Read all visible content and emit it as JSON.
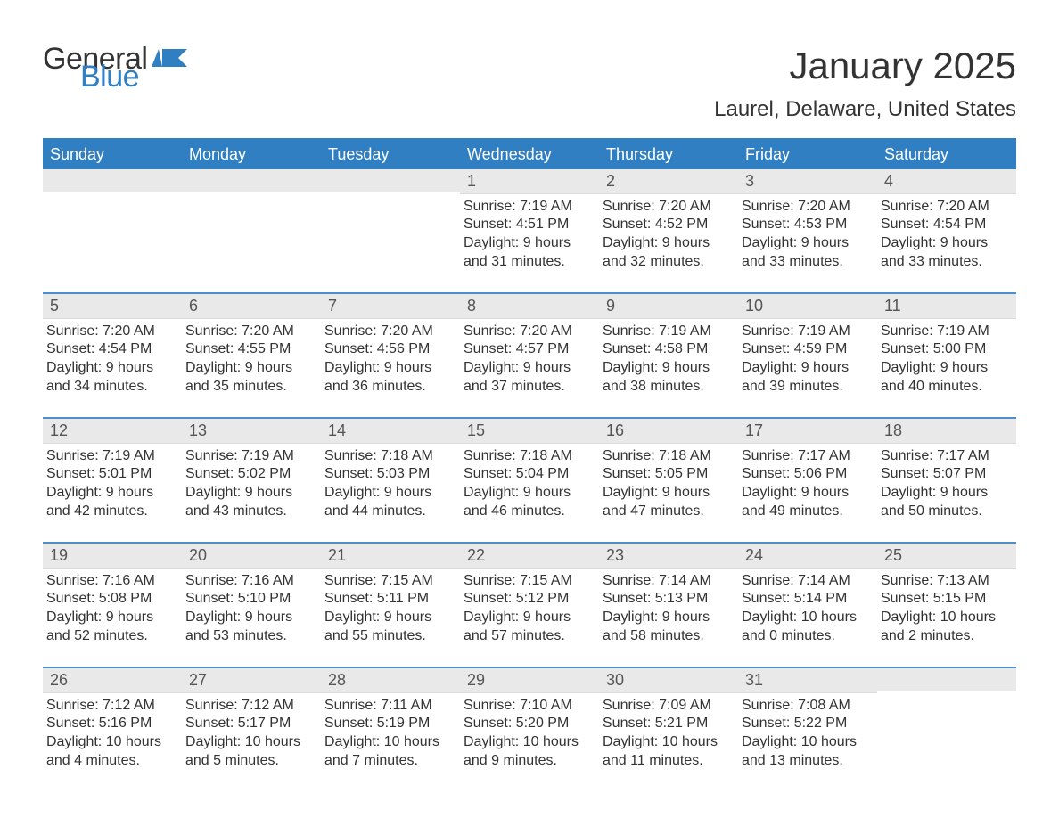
{
  "brand": {
    "part1": "General",
    "part2": "Blue",
    "brand_color": "#2f7fc2",
    "text_color": "#333333"
  },
  "title": "January 2025",
  "subtitle": "Laurel, Delaware, United States",
  "colors": {
    "header_bg": "#2f7fc2",
    "header_text": "#ffffff",
    "week_border": "#4d8fc8",
    "daynum_bg": "#e9e9e9",
    "body_text": "#333333",
    "background": "#ffffff"
  },
  "fontsizes": {
    "title": 42,
    "subtitle": 24,
    "dayhead": 18,
    "daynum": 18,
    "body": 16
  },
  "day_names": [
    "Sunday",
    "Monday",
    "Tuesday",
    "Wednesday",
    "Thursday",
    "Friday",
    "Saturday"
  ],
  "weeks": [
    [
      null,
      null,
      null,
      {
        "n": "1",
        "sunrise": "Sunrise: 7:19 AM",
        "sunset": "Sunset: 4:51 PM",
        "day1": "Daylight: 9 hours",
        "day2": "and 31 minutes."
      },
      {
        "n": "2",
        "sunrise": "Sunrise: 7:20 AM",
        "sunset": "Sunset: 4:52 PM",
        "day1": "Daylight: 9 hours",
        "day2": "and 32 minutes."
      },
      {
        "n": "3",
        "sunrise": "Sunrise: 7:20 AM",
        "sunset": "Sunset: 4:53 PM",
        "day1": "Daylight: 9 hours",
        "day2": "and 33 minutes."
      },
      {
        "n": "4",
        "sunrise": "Sunrise: 7:20 AM",
        "sunset": "Sunset: 4:54 PM",
        "day1": "Daylight: 9 hours",
        "day2": "and 33 minutes."
      }
    ],
    [
      {
        "n": "5",
        "sunrise": "Sunrise: 7:20 AM",
        "sunset": "Sunset: 4:54 PM",
        "day1": "Daylight: 9 hours",
        "day2": "and 34 minutes."
      },
      {
        "n": "6",
        "sunrise": "Sunrise: 7:20 AM",
        "sunset": "Sunset: 4:55 PM",
        "day1": "Daylight: 9 hours",
        "day2": "and 35 minutes."
      },
      {
        "n": "7",
        "sunrise": "Sunrise: 7:20 AM",
        "sunset": "Sunset: 4:56 PM",
        "day1": "Daylight: 9 hours",
        "day2": "and 36 minutes."
      },
      {
        "n": "8",
        "sunrise": "Sunrise: 7:20 AM",
        "sunset": "Sunset: 4:57 PM",
        "day1": "Daylight: 9 hours",
        "day2": "and 37 minutes."
      },
      {
        "n": "9",
        "sunrise": "Sunrise: 7:19 AM",
        "sunset": "Sunset: 4:58 PM",
        "day1": "Daylight: 9 hours",
        "day2": "and 38 minutes."
      },
      {
        "n": "10",
        "sunrise": "Sunrise: 7:19 AM",
        "sunset": "Sunset: 4:59 PM",
        "day1": "Daylight: 9 hours",
        "day2": "and 39 minutes."
      },
      {
        "n": "11",
        "sunrise": "Sunrise: 7:19 AM",
        "sunset": "Sunset: 5:00 PM",
        "day1": "Daylight: 9 hours",
        "day2": "and 40 minutes."
      }
    ],
    [
      {
        "n": "12",
        "sunrise": "Sunrise: 7:19 AM",
        "sunset": "Sunset: 5:01 PM",
        "day1": "Daylight: 9 hours",
        "day2": "and 42 minutes."
      },
      {
        "n": "13",
        "sunrise": "Sunrise: 7:19 AM",
        "sunset": "Sunset: 5:02 PM",
        "day1": "Daylight: 9 hours",
        "day2": "and 43 minutes."
      },
      {
        "n": "14",
        "sunrise": "Sunrise: 7:18 AM",
        "sunset": "Sunset: 5:03 PM",
        "day1": "Daylight: 9 hours",
        "day2": "and 44 minutes."
      },
      {
        "n": "15",
        "sunrise": "Sunrise: 7:18 AM",
        "sunset": "Sunset: 5:04 PM",
        "day1": "Daylight: 9 hours",
        "day2": "and 46 minutes."
      },
      {
        "n": "16",
        "sunrise": "Sunrise: 7:18 AM",
        "sunset": "Sunset: 5:05 PM",
        "day1": "Daylight: 9 hours",
        "day2": "and 47 minutes."
      },
      {
        "n": "17",
        "sunrise": "Sunrise: 7:17 AM",
        "sunset": "Sunset: 5:06 PM",
        "day1": "Daylight: 9 hours",
        "day2": "and 49 minutes."
      },
      {
        "n": "18",
        "sunrise": "Sunrise: 7:17 AM",
        "sunset": "Sunset: 5:07 PM",
        "day1": "Daylight: 9 hours",
        "day2": "and 50 minutes."
      }
    ],
    [
      {
        "n": "19",
        "sunrise": "Sunrise: 7:16 AM",
        "sunset": "Sunset: 5:08 PM",
        "day1": "Daylight: 9 hours",
        "day2": "and 52 minutes."
      },
      {
        "n": "20",
        "sunrise": "Sunrise: 7:16 AM",
        "sunset": "Sunset: 5:10 PM",
        "day1": "Daylight: 9 hours",
        "day2": "and 53 minutes."
      },
      {
        "n": "21",
        "sunrise": "Sunrise: 7:15 AM",
        "sunset": "Sunset: 5:11 PM",
        "day1": "Daylight: 9 hours",
        "day2": "and 55 minutes."
      },
      {
        "n": "22",
        "sunrise": "Sunrise: 7:15 AM",
        "sunset": "Sunset: 5:12 PM",
        "day1": "Daylight: 9 hours",
        "day2": "and 57 minutes."
      },
      {
        "n": "23",
        "sunrise": "Sunrise: 7:14 AM",
        "sunset": "Sunset: 5:13 PM",
        "day1": "Daylight: 9 hours",
        "day2": "and 58 minutes."
      },
      {
        "n": "24",
        "sunrise": "Sunrise: 7:14 AM",
        "sunset": "Sunset: 5:14 PM",
        "day1": "Daylight: 10 hours",
        "day2": "and 0 minutes."
      },
      {
        "n": "25",
        "sunrise": "Sunrise: 7:13 AM",
        "sunset": "Sunset: 5:15 PM",
        "day1": "Daylight: 10 hours",
        "day2": "and 2 minutes."
      }
    ],
    [
      {
        "n": "26",
        "sunrise": "Sunrise: 7:12 AM",
        "sunset": "Sunset: 5:16 PM",
        "day1": "Daylight: 10 hours",
        "day2": "and 4 minutes."
      },
      {
        "n": "27",
        "sunrise": "Sunrise: 7:12 AM",
        "sunset": "Sunset: 5:17 PM",
        "day1": "Daylight: 10 hours",
        "day2": "and 5 minutes."
      },
      {
        "n": "28",
        "sunrise": "Sunrise: 7:11 AM",
        "sunset": "Sunset: 5:19 PM",
        "day1": "Daylight: 10 hours",
        "day2": "and 7 minutes."
      },
      {
        "n": "29",
        "sunrise": "Sunrise: 7:10 AM",
        "sunset": "Sunset: 5:20 PM",
        "day1": "Daylight: 10 hours",
        "day2": "and 9 minutes."
      },
      {
        "n": "30",
        "sunrise": "Sunrise: 7:09 AM",
        "sunset": "Sunset: 5:21 PM",
        "day1": "Daylight: 10 hours",
        "day2": "and 11 minutes."
      },
      {
        "n": "31",
        "sunrise": "Sunrise: 7:08 AM",
        "sunset": "Sunset: 5:22 PM",
        "day1": "Daylight: 10 hours",
        "day2": "and 13 minutes."
      },
      null
    ]
  ]
}
